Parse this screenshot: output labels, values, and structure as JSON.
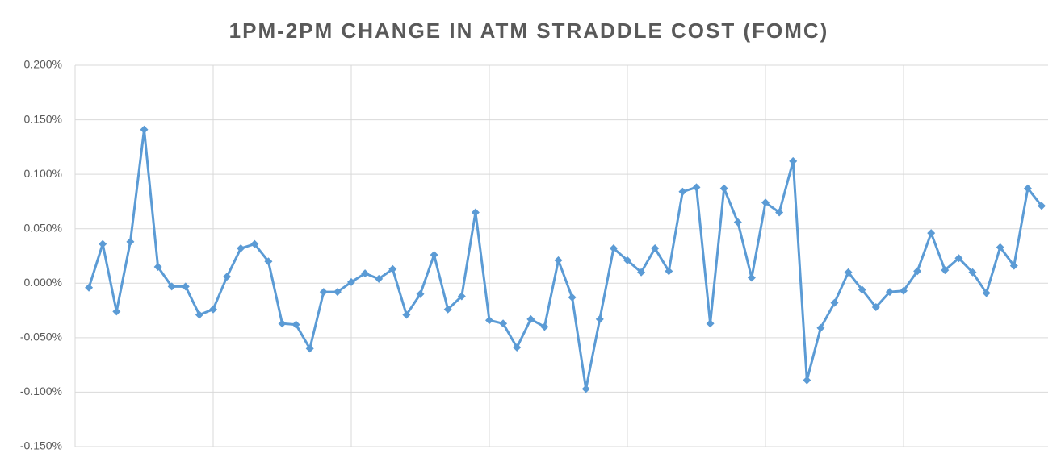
{
  "chart_data": {
    "type": "line",
    "title": "1PM-2PM CHANGE IN ATM STRADDLE COST (FOMC)",
    "categories": [
      null,
      null,
      null,
      null,
      null,
      null,
      null,
      null,
      null,
      null,
      null,
      null,
      null,
      null,
      null,
      null,
      null,
      null,
      null,
      null,
      null,
      null,
      null,
      null,
      null,
      null,
      null,
      null,
      null,
      null,
      null,
      null,
      null,
      null,
      null,
      null,
      null,
      null,
      null,
      null,
      null,
      null,
      null,
      null,
      null,
      null,
      null,
      null,
      null,
      null,
      null,
      null,
      null,
      null,
      null,
      null,
      null,
      null,
      null,
      null,
      null,
      null,
      null,
      null,
      null,
      null,
      null,
      null,
      null,
      null
    ],
    "series": [
      {
        "color": "#5b9bd5",
        "values": [
          -0.004,
          0.036,
          -0.026,
          0.038,
          0.141,
          0.015,
          -0.003,
          -0.003,
          -0.029,
          -0.024,
          0.006,
          0.032,
          0.036,
          0.02,
          -0.037,
          -0.038,
          -0.06,
          -0.008,
          -0.008,
          0.001,
          0.009,
          0.004,
          0.013,
          -0.029,
          -0.01,
          0.026,
          -0.024,
          -0.012,
          0.065,
          -0.034,
          -0.037,
          -0.059,
          -0.033,
          -0.04,
          0.021,
          -0.013,
          -0.097,
          -0.033,
          0.032,
          0.021,
          0.01,
          0.032,
          0.011,
          0.084,
          0.088,
          -0.037,
          0.087,
          0.056,
          0.005,
          0.074,
          0.065,
          0.112,
          -0.089,
          -0.041,
          -0.018,
          0.01,
          -0.006,
          -0.022,
          -0.008,
          -0.007,
          0.011,
          0.046,
          0.012,
          0.023,
          0.01,
          -0.009,
          0.033,
          0.016,
          0.087,
          0.071
        ]
      }
    ],
    "ylim": [
      -0.15,
      0.2
    ],
    "yticks": [
      {
        "value": -0.15,
        "label": "-0.150%"
      },
      {
        "value": -0.1,
        "label": "-0.100%"
      },
      {
        "value": -0.05,
        "label": "-0.050%"
      },
      {
        "value": 0,
        "label": "0.000%"
      },
      {
        "value": 0.05,
        "label": "0.050%"
      },
      {
        "value": 0.1,
        "label": "0.100%"
      },
      {
        "value": 0.15,
        "label": "0.150%"
      },
      {
        "value": 0.2,
        "label": "0.200%"
      }
    ],
    "grid": true
  }
}
